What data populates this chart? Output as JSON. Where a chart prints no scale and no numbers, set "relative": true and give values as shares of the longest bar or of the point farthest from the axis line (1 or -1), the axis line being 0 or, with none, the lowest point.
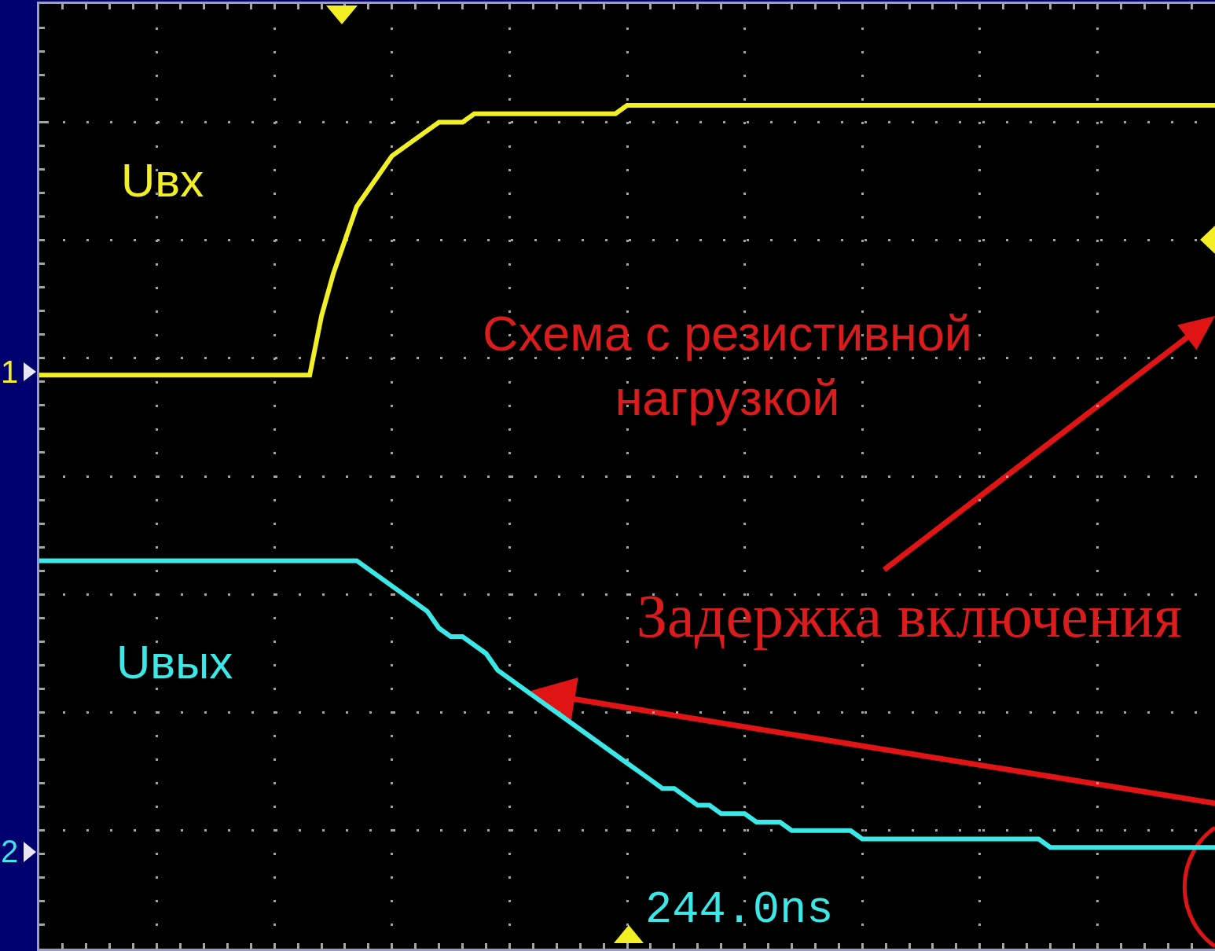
{
  "chart_data": {
    "type": "line",
    "relative": true,
    "grid": true,
    "legend": false,
    "line_style": "solid",
    "categories": [
      null,
      null,
      null,
      null,
      null,
      null,
      null,
      null,
      null,
      null,
      null,
      null,
      null,
      null,
      null,
      null,
      null,
      null,
      null,
      null,
      null,
      null,
      null,
      null,
      null,
      null,
      null,
      null,
      null,
      null,
      null,
      null,
      null,
      null,
      null,
      null,
      null,
      null,
      null,
      null,
      null,
      null,
      null,
      null,
      null,
      null,
      null,
      null,
      null,
      null,
      null,
      null,
      null,
      null,
      null,
      null,
      null,
      null,
      null,
      null,
      null,
      null,
      null,
      null,
      null,
      null,
      null,
      null,
      null,
      null,
      null,
      null,
      null,
      null,
      null,
      null,
      null,
      null,
      null,
      null,
      null,
      null,
      null,
      null,
      null,
      null,
      null,
      null,
      null,
      null,
      null,
      null,
      null,
      null,
      null,
      null,
      null,
      null,
      null,
      null,
      null
    ],
    "series": [
      {
        "name": "Uвх",
        "color": "#f2f024",
        "values": [
          0.68,
          0.68,
          0.68,
          0.68,
          0.68,
          0.68,
          0.68,
          0.68,
          0.68,
          0.68,
          0.68,
          0.68,
          0.68,
          0.68,
          0.68,
          0.68,
          0.68,
          0.68,
          0.68,
          0.68,
          0.68,
          0.68,
          0.68,
          0.68,
          0.75,
          0.8,
          0.84,
          0.88,
          0.9,
          0.92,
          0.94,
          0.95,
          0.96,
          0.97,
          0.98,
          0.98,
          0.98,
          0.99,
          0.99,
          0.99,
          0.99,
          0.99,
          0.99,
          0.99,
          0.99,
          0.99,
          0.99,
          0.99,
          0.99,
          0.99,
          1,
          1,
          1,
          1,
          1,
          1,
          1,
          1,
          1,
          1,
          1,
          1,
          1,
          1,
          1,
          1,
          1,
          1,
          1,
          1,
          1,
          1,
          1,
          1,
          1,
          1,
          1,
          1,
          1,
          1,
          1,
          1,
          1,
          1,
          1,
          1,
          1,
          1,
          1,
          1,
          1,
          1,
          1,
          1,
          1,
          1,
          1,
          1,
          1,
          1,
          1
        ]
      },
      {
        "name": "Uвых",
        "color": "#3ae8e8",
        "values": [
          0.46,
          0.46,
          0.46,
          0.46,
          0.46,
          0.46,
          0.46,
          0.46,
          0.46,
          0.46,
          0.46,
          0.46,
          0.46,
          0.46,
          0.46,
          0.46,
          0.46,
          0.46,
          0.46,
          0.46,
          0.46,
          0.46,
          0.46,
          0.46,
          0.46,
          0.46,
          0.46,
          0.46,
          0.45,
          0.44,
          0.43,
          0.42,
          0.41,
          0.4,
          0.38,
          0.37,
          0.37,
          0.36,
          0.35,
          0.33,
          0.32,
          0.31,
          0.3,
          0.29,
          0.28,
          0.27,
          0.26,
          0.25,
          0.24,
          0.23,
          0.22,
          0.21,
          0.2,
          0.19,
          0.19,
          0.18,
          0.17,
          0.17,
          0.16,
          0.16,
          0.16,
          0.15,
          0.15,
          0.15,
          0.14,
          0.14,
          0.14,
          0.14,
          0.14,
          0.14,
          0.13,
          0.13,
          0.13,
          0.13,
          0.13,
          0.13,
          0.13,
          0.13,
          0.13,
          0.13,
          0.13,
          0.13,
          0.13,
          0.13,
          0.13,
          0.13,
          0.12,
          0.12,
          0.12,
          0.12,
          0.12,
          0.12,
          0.12,
          0.12,
          0.12,
          0.12,
          0.12,
          0.12,
          0.12,
          0.12,
          0.12
        ]
      }
    ],
    "annotations": [
      "Схема с резистивной\nнагрузкой",
      "Задержка включения",
      "244.0ns",
      "1",
      "2"
    ]
  }
}
